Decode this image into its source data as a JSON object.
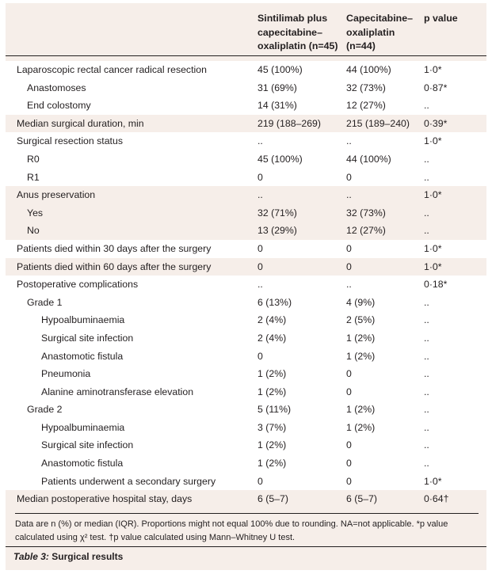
{
  "table": {
    "headers": [
      "",
      "Sintilimab plus\ncapecitabine–\noxaliplatin (n=45)",
      "Capecitabine–\noxaliplatin\n(n=44)",
      "p value"
    ],
    "rows": [
      {
        "indent": 0,
        "highlight": true,
        "cells": [
          "Laparoscopic rectal cancer radical resection",
          "45 (100%)",
          "44 (100%)",
          "1·0*"
        ]
      },
      {
        "indent": 1,
        "highlight": true,
        "cells": [
          "Anastomoses",
          "31 (69%)",
          "32 (73%)",
          "0·87*"
        ]
      },
      {
        "indent": 1,
        "highlight": true,
        "cells": [
          "End colostomy",
          "14 (31%)",
          "12 (27%)",
          ".."
        ]
      },
      {
        "indent": 0,
        "highlight": false,
        "cells": [
          "Median surgical duration, min",
          "219 (188–269)",
          "215 (189–240)",
          "0·39*"
        ]
      },
      {
        "indent": 0,
        "highlight": true,
        "cells": [
          "Surgical resection status",
          "..",
          "..",
          "1·0*"
        ]
      },
      {
        "indent": 1,
        "highlight": true,
        "cells": [
          "R0",
          "45 (100%)",
          "44 (100%)",
          ".."
        ]
      },
      {
        "indent": 1,
        "highlight": true,
        "cells": [
          "R1",
          "0",
          "0",
          ".."
        ]
      },
      {
        "indent": 0,
        "highlight": false,
        "cells": [
          "Anus preservation",
          "..",
          "..",
          "1·0*"
        ]
      },
      {
        "indent": 1,
        "highlight": false,
        "cells": [
          "Yes",
          "32 (71%)",
          "32 (73%)",
          ".."
        ]
      },
      {
        "indent": 1,
        "highlight": false,
        "cells": [
          "No",
          "13 (29%)",
          "12 (27%)",
          ".."
        ]
      },
      {
        "indent": 0,
        "highlight": true,
        "cells": [
          "Patients died within 30 days after the surgery",
          "0",
          "0",
          "1·0*"
        ]
      },
      {
        "indent": 0,
        "highlight": false,
        "cells": [
          "Patients died within 60 days after the surgery",
          "0",
          "0",
          "1·0*"
        ]
      },
      {
        "indent": 0,
        "highlight": true,
        "cells": [
          "Postoperative complications",
          "..",
          "..",
          "0·18*"
        ]
      },
      {
        "indent": 1,
        "highlight": true,
        "cells": [
          "Grade 1",
          "6 (13%)",
          "4 (9%)",
          ".."
        ]
      },
      {
        "indent": 2,
        "highlight": true,
        "cells": [
          "Hypoalbuminaemia",
          "2 (4%)",
          "2 (5%)",
          ".."
        ]
      },
      {
        "indent": 2,
        "highlight": true,
        "cells": [
          "Surgical site infection",
          "2 (4%)",
          "1 (2%)",
          ".."
        ]
      },
      {
        "indent": 2,
        "highlight": true,
        "cells": [
          "Anastomotic fistula",
          "0",
          "1 (2%)",
          ".."
        ]
      },
      {
        "indent": 2,
        "highlight": true,
        "cells": [
          "Pneumonia",
          "1 (2%)",
          "0",
          ".."
        ]
      },
      {
        "indent": 2,
        "highlight": true,
        "cells": [
          "Alanine aminotransferase elevation",
          "1 (2%)",
          "0",
          ".."
        ]
      },
      {
        "indent": 1,
        "highlight": true,
        "cells": [
          "Grade 2",
          "5 (11%)",
          "1 (2%)",
          ".."
        ]
      },
      {
        "indent": 2,
        "highlight": true,
        "cells": [
          "Hypoalbuminaemia",
          "3 (7%)",
          "1 (2%)",
          ".."
        ]
      },
      {
        "indent": 2,
        "highlight": true,
        "cells": [
          "Surgical site infection",
          "1 (2%)",
          "0",
          ".."
        ]
      },
      {
        "indent": 2,
        "highlight": true,
        "cells": [
          "Anastomotic fistula",
          "1 (2%)",
          "0",
          ".."
        ]
      },
      {
        "indent": 2,
        "highlight": true,
        "cells": [
          "Patients underwent a secondary surgery",
          "0",
          "0",
          "1·0*"
        ]
      },
      {
        "indent": 0,
        "highlight": false,
        "cells": [
          "Median postoperative hospital stay, days",
          "6 (5–7)",
          "6 (5–7)",
          "0·64†"
        ]
      }
    ]
  },
  "footnote": "Data are n (%) or median (IQR). Proportions might not equal 100% due to rounding. NA=not applicable. *p value calculated using χ² test. †p value calculated using Mann–Whitney U test.",
  "caption": {
    "label": "Table 3:",
    "title": " Surgical results"
  }
}
